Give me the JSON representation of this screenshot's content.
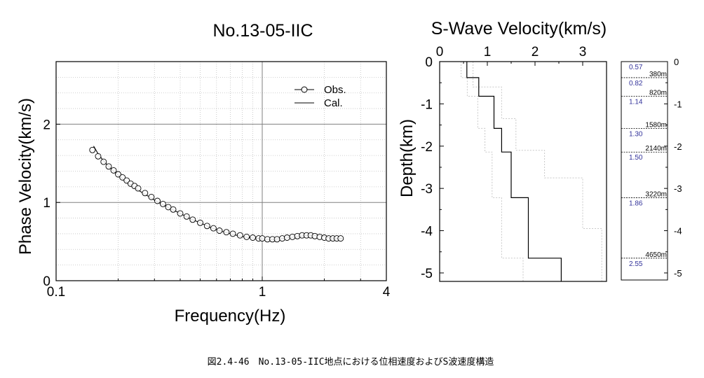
{
  "chart_data": [
    {
      "type": "scatter",
      "title": "No.13-05-IIC",
      "xlabel": "Frequency(Hz)",
      "ylabel": "Phase Velocity(km/s)",
      "xscale": "log",
      "xlim": [
        0.1,
        4
      ],
      "ylim": [
        0,
        2.8
      ],
      "x_tick_labels": [
        "0.1",
        "1",
        "4"
      ],
      "y_tick_labels": [
        "0",
        "1",
        "2"
      ],
      "grid": true,
      "legend_position": "top-right",
      "legend": [
        "Obs.",
        "Cal."
      ],
      "obs": {
        "x": [
          0.15,
          0.16,
          0.17,
          0.18,
          0.19,
          0.2,
          0.21,
          0.22,
          0.23,
          0.24,
          0.25,
          0.27,
          0.29,
          0.31,
          0.33,
          0.35,
          0.37,
          0.4,
          0.43,
          0.46,
          0.5,
          0.54,
          0.58,
          0.62,
          0.67,
          0.72,
          0.78,
          0.84,
          0.9,
          0.96,
          1.0,
          1.06,
          1.12,
          1.18,
          1.25,
          1.32,
          1.4,
          1.48,
          1.56,
          1.64,
          1.72,
          1.8,
          1.9,
          2.0,
          2.1,
          2.2,
          2.3,
          2.4
        ],
        "y": [
          1.67,
          1.59,
          1.52,
          1.46,
          1.41,
          1.36,
          1.32,
          1.28,
          1.24,
          1.21,
          1.18,
          1.12,
          1.07,
          1.02,
          0.98,
          0.94,
          0.91,
          0.86,
          0.82,
          0.78,
          0.74,
          0.7,
          0.67,
          0.64,
          0.62,
          0.6,
          0.58,
          0.56,
          0.55,
          0.54,
          0.54,
          0.53,
          0.53,
          0.53,
          0.54,
          0.55,
          0.56,
          0.57,
          0.58,
          0.58,
          0.58,
          0.57,
          0.56,
          0.55,
          0.54,
          0.54,
          0.54,
          0.54
        ]
      },
      "cal": {
        "x": [
          0.152,
          0.16,
          0.17,
          0.18,
          0.19,
          0.2,
          0.22,
          0.24,
          0.26,
          0.28,
          0.3,
          0.33,
          0.36,
          0.4,
          0.45,
          0.5,
          0.56,
          0.62,
          0.7,
          0.78,
          0.86,
          0.95,
          1.05,
          1.15,
          1.25,
          1.35,
          1.45,
          1.55,
          1.65,
          1.75,
          1.85,
          1.95,
          2.05,
          2.15,
          2.25,
          2.35,
          2.45
        ],
        "y": [
          1.72,
          1.62,
          1.53,
          1.46,
          1.4,
          1.35,
          1.26,
          1.19,
          1.13,
          1.08,
          1.03,
          0.97,
          0.92,
          0.86,
          0.79,
          0.74,
          0.68,
          0.64,
          0.6,
          0.57,
          0.55,
          0.54,
          0.53,
          0.53,
          0.54,
          0.55,
          0.56,
          0.57,
          0.58,
          0.58,
          0.58,
          0.57,
          0.56,
          0.55,
          0.54,
          0.54,
          0.54
        ]
      }
    },
    {
      "type": "line",
      "title": "S-Wave Velocity(km/s)",
      "xlabel": "",
      "ylabel": "Depth(km)",
      "xlim": [
        0,
        3.5
      ],
      "ylim": [
        -5.2,
        0
      ],
      "x_tick_labels": [
        "0",
        "1",
        "2",
        "3"
      ],
      "y_tick_labels": [
        "0",
        "-1",
        "-2",
        "-3",
        "-4",
        "-5"
      ],
      "model": {
        "vs": [
          0.57,
          0.82,
          1.14,
          1.3,
          1.5,
          1.86,
          2.55
        ],
        "top_km": [
          0,
          0.38,
          0.82,
          1.58,
          2.14,
          3.22,
          4.65
        ],
        "bottom_km": 5.2
      },
      "bound_lower": {
        "vs": [
          0.45,
          0.58,
          0.8,
          0.95,
          1.1,
          1.3,
          1.75
        ],
        "top_km": [
          0,
          0.38,
          0.82,
          1.58,
          2.14,
          3.22,
          4.65
        ]
      },
      "bound_upper": {
        "vs": [
          0.7,
          1.3,
          1.6,
          2.2,
          3.0,
          3.4,
          3.4
        ],
        "top_km": [
          0,
          0.6,
          1.35,
          2.1,
          2.75,
          3.95,
          4.65
        ]
      }
    }
  ],
  "layer_column": {
    "depth_tick_labels": [
      "0",
      "-1",
      "-2",
      "-3",
      "-4",
      "-5"
    ],
    "layers": [
      {
        "vs": "0.57",
        "depth": "380m"
      },
      {
        "vs": "0.82",
        "depth": "820m"
      },
      {
        "vs": "1.14",
        "depth": "1580m"
      },
      {
        "vs": "1.30",
        "depth": "2140m"
      },
      {
        "vs": "1.50",
        "depth": "3220m"
      },
      {
        "vs": "1.86",
        "depth": "4650m"
      },
      {
        "vs": "2.55",
        "depth": ""
      }
    ]
  },
  "caption": "図2.4-46　No.13-05-IIC地点における位相速度およびS波速度構造",
  "colors": {
    "axis": "#000000",
    "grid_major": "#808080",
    "grid_minor": "#c0c0c0",
    "bound": "#c8c8c8",
    "vs_label": "#33339a"
  }
}
